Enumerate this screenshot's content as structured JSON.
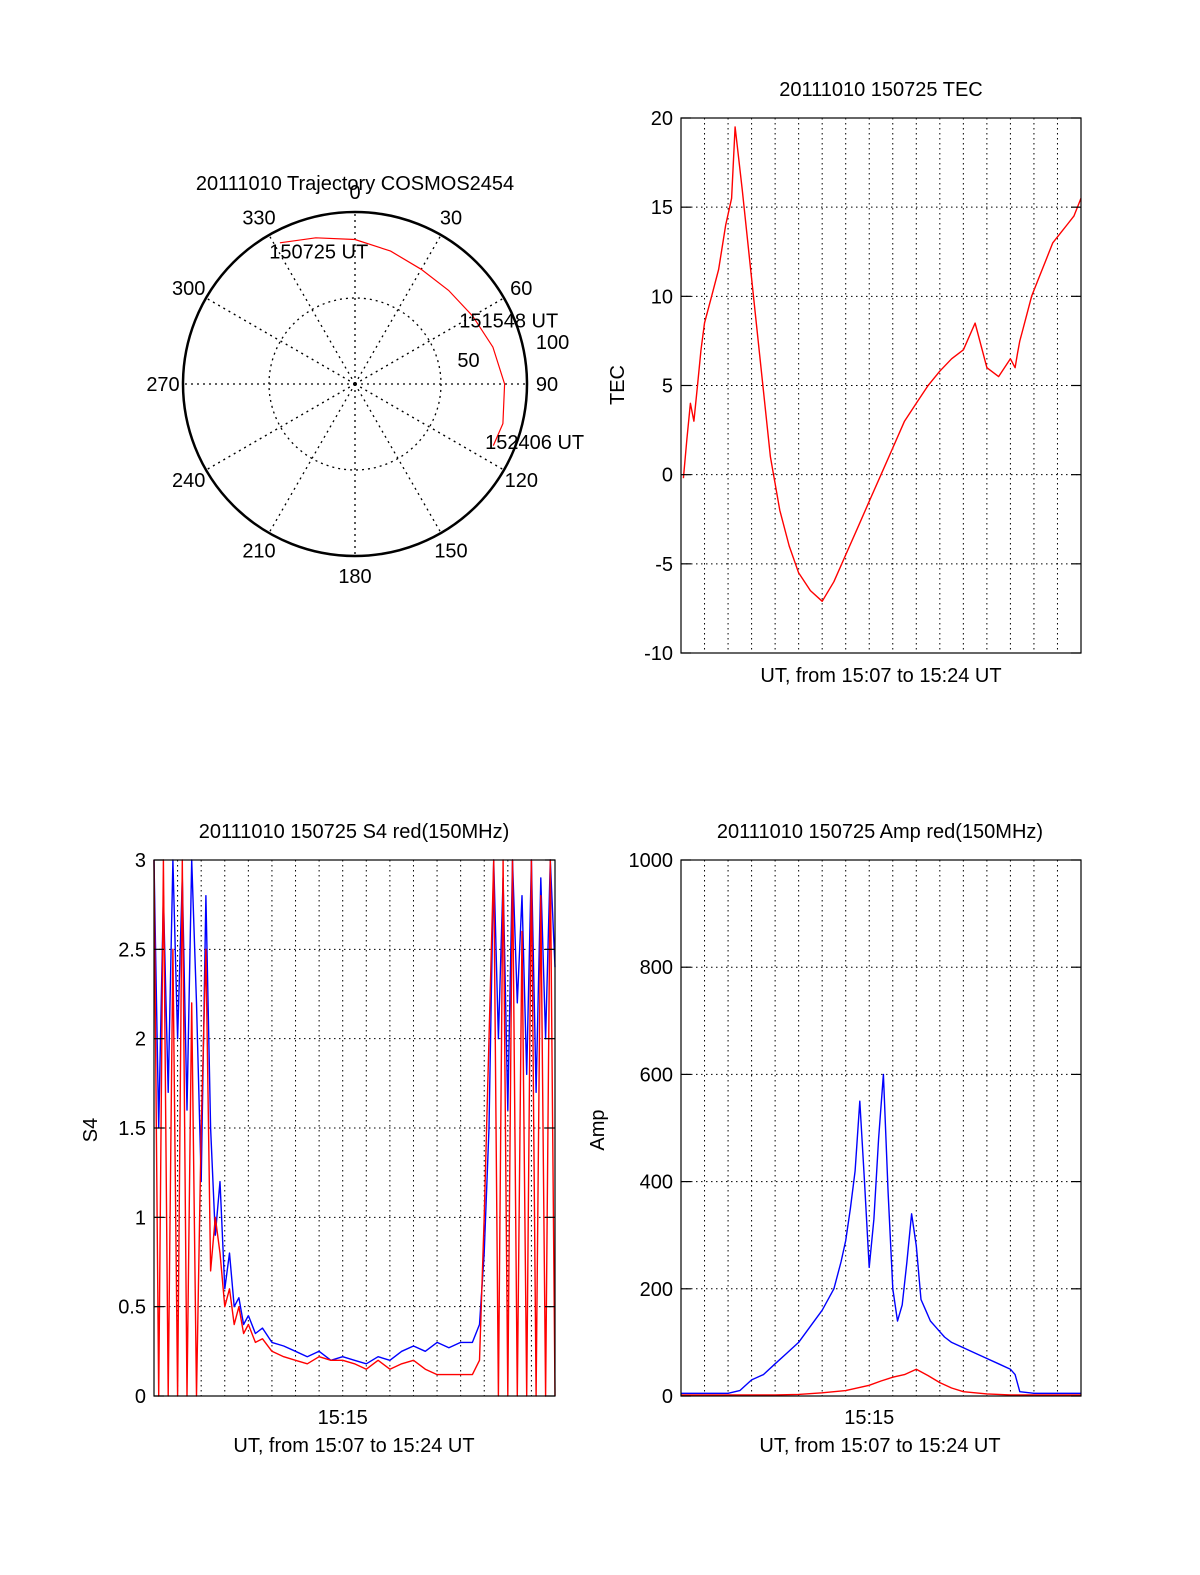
{
  "colors": {
    "red": "#ff0000",
    "blue": "#0000ff",
    "axis": "#000000",
    "grid": "#000000"
  },
  "chart_data": [
    {
      "type": "polar",
      "title": "20111010 Trajectory COSMOS2454",
      "angle_labels": [
        "0",
        "30",
        "60",
        "90",
        "120",
        "150",
        "180",
        "210",
        "240",
        "270",
        "300",
        "330"
      ],
      "angle_values": [
        0,
        30,
        60,
        90,
        120,
        150,
        180,
        210,
        240,
        270,
        300,
        330
      ],
      "radius_labels": [
        "50",
        "100"
      ],
      "radius_values": [
        50,
        100
      ],
      "rlim": [
        0,
        100
      ],
      "grid": true,
      "series": [
        {
          "color": "red",
          "points": [
            {
              "az": 332,
              "r": 93
            },
            {
              "az": 345,
              "r": 88
            },
            {
              "az": 0,
              "r": 84
            },
            {
              "az": 15,
              "r": 80
            },
            {
              "az": 30,
              "r": 77
            },
            {
              "az": 45,
              "r": 77
            },
            {
              "az": 60,
              "r": 79
            },
            {
              "az": 75,
              "r": 83
            },
            {
              "az": 90,
              "r": 87
            },
            {
              "az": 105,
              "r": 89
            },
            {
              "az": 114,
              "r": 88
            }
          ]
        }
      ],
      "annotations": [
        {
          "text": "150725 UT",
          "az": 329,
          "r": 90
        },
        {
          "text": "151548 UT",
          "az": 60,
          "r": 74
        },
        {
          "text": "152406 UT",
          "az": 113,
          "r": 86
        }
      ]
    },
    {
      "type": "line",
      "title": "20111010 150725 TEC",
      "xlabel": "UT, from 15:07 to 15:24 UT",
      "ylabel": "TEC",
      "xlim": [
        0,
        17
      ],
      "ylim": [
        -10,
        20
      ],
      "yticks": [
        -10,
        -5,
        0,
        5,
        10,
        15,
        20
      ],
      "grid": true,
      "series": [
        {
          "color": "red",
          "x": [
            0.1,
            0.25,
            0.4,
            0.55,
            0.7,
            0.85,
            1.0,
            1.3,
            1.6,
            1.9,
            2.15,
            2.3,
            2.6,
            3.0,
            3.4,
            3.8,
            4.2,
            4.6,
            5.0,
            5.5,
            6.0,
            6.5,
            7.0,
            7.5,
            8.0,
            8.5,
            9.0,
            9.5,
            10.0,
            10.5,
            11.0,
            11.5,
            12.0,
            12.5,
            13.0,
            13.5,
            14.0,
            14.2,
            14.3,
            14.4,
            14.5,
            14.7,
            14.9,
            15.2,
            15.5,
            15.8,
            16.1,
            16.4,
            16.7,
            17.0
          ],
          "y": [
            -0.2,
            2.0,
            4.0,
            3.0,
            5.0,
            7.0,
            8.5,
            10.0,
            11.5,
            14.0,
            15.5,
            19.5,
            16.0,
            11.0,
            6.0,
            1.0,
            -2.0,
            -4.0,
            -5.5,
            -6.5,
            -7.1,
            -6.0,
            -4.5,
            -3.0,
            -1.5,
            0.0,
            1.5,
            3.0,
            4.0,
            5.0,
            5.8,
            6.5,
            7.0,
            8.5,
            6.0,
            5.5,
            6.5,
            6.0,
            6.8,
            7.5,
            8.0,
            9.0,
            10.0,
            11.0,
            12.0,
            13.0,
            13.5,
            14.0,
            14.5,
            15.5
          ]
        }
      ]
    },
    {
      "type": "line",
      "title": "20111010 150725 S4 red(150MHz)",
      "xlabel": "UT, from 15:07 to 15:24 UT",
      "ylabel": "S4",
      "xlim": [
        0,
        17
      ],
      "ylim": [
        0,
        3
      ],
      "yticks": [
        0,
        0.5,
        1,
        1.5,
        2,
        2.5,
        3
      ],
      "xtick_label": "15:15",
      "xtick_value": 8,
      "grid": true,
      "series": [
        {
          "color": "blue",
          "x": [
            0.0,
            0.2,
            0.4,
            0.6,
            0.8,
            1.0,
            1.2,
            1.4,
            1.6,
            1.8,
            2.0,
            2.2,
            2.4,
            2.6,
            2.8,
            3.0,
            3.2,
            3.4,
            3.6,
            3.8,
            4.0,
            4.3,
            4.6,
            5.0,
            5.5,
            6.0,
            6.5,
            7.0,
            7.5,
            8.0,
            8.5,
            9.0,
            9.5,
            10.0,
            10.5,
            11.0,
            11.5,
            12.0,
            12.5,
            13.0,
            13.5,
            13.8,
            14.0,
            14.2,
            14.4,
            14.6,
            14.8,
            15.0,
            15.2,
            15.4,
            15.6,
            15.8,
            16.0,
            16.2,
            16.4,
            16.6,
            16.8,
            17.0
          ],
          "y": [
            3.0,
            1.5,
            2.8,
            1.7,
            3.0,
            2.0,
            2.9,
            1.6,
            3.0,
            2.2,
            1.2,
            2.8,
            1.5,
            0.9,
            1.2,
            0.6,
            0.8,
            0.5,
            0.55,
            0.4,
            0.45,
            0.35,
            0.38,
            0.3,
            0.28,
            0.25,
            0.22,
            0.25,
            0.2,
            0.22,
            0.2,
            0.18,
            0.22,
            0.2,
            0.25,
            0.28,
            0.25,
            0.3,
            0.27,
            0.3,
            0.3,
            0.4,
            0.8,
            1.5,
            3.0,
            2.0,
            2.9,
            1.6,
            3.0,
            2.2,
            2.8,
            1.8,
            3.0,
            1.7,
            2.9,
            2.0,
            3.0,
            2.4
          ]
        },
        {
          "color": "red",
          "x": [
            0.0,
            0.2,
            0.4,
            0.6,
            0.8,
            1.0,
            1.2,
            1.4,
            1.6,
            1.8,
            2.0,
            2.2,
            2.4,
            2.6,
            2.8,
            3.0,
            3.2,
            3.4,
            3.6,
            3.8,
            4.0,
            4.3,
            4.6,
            5.0,
            5.5,
            6.0,
            6.5,
            7.0,
            7.5,
            8.0,
            8.5,
            9.0,
            9.5,
            10.0,
            10.5,
            11.0,
            11.5,
            12.0,
            12.5,
            13.0,
            13.5,
            13.8,
            14.0,
            14.2,
            14.4,
            14.6,
            14.8,
            15.0,
            15.2,
            15.4,
            15.6,
            15.8,
            16.0,
            16.2,
            16.4,
            16.6,
            16.8,
            17.0
          ],
          "y": [
            3.0,
            0.0,
            3.0,
            0.0,
            2.5,
            0.0,
            3.0,
            0.0,
            2.2,
            0.0,
            1.5,
            2.5,
            0.7,
            1.0,
            0.8,
            0.5,
            0.6,
            0.4,
            0.5,
            0.35,
            0.4,
            0.3,
            0.32,
            0.25,
            0.22,
            0.2,
            0.18,
            0.22,
            0.2,
            0.2,
            0.18,
            0.15,
            0.2,
            0.15,
            0.18,
            0.2,
            0.15,
            0.12,
            0.12,
            0.12,
            0.12,
            0.2,
            1.0,
            2.0,
            3.0,
            0.0,
            3.0,
            0.0,
            3.0,
            0.0,
            2.6,
            0.0,
            3.0,
            0.0,
            2.8,
            0.0,
            3.0,
            0.0
          ]
        }
      ]
    },
    {
      "type": "line",
      "title": "20111010 150725 Amp red(150MHz)",
      "xlabel": "UT, from 15:07 to 15:24 UT",
      "ylabel": "Amp",
      "xlim": [
        0,
        17
      ],
      "ylim": [
        0,
        1000
      ],
      "yticks": [
        0,
        200,
        400,
        600,
        800,
        1000
      ],
      "xtick_label": "15:15",
      "xtick_value": 8,
      "grid": true,
      "series": [
        {
          "color": "blue",
          "x": [
            0.0,
            1.0,
            2.0,
            2.5,
            3.0,
            3.5,
            4.0,
            4.5,
            5.0,
            5.5,
            6.0,
            6.5,
            6.8,
            7.0,
            7.2,
            7.4,
            7.6,
            7.8,
            8.0,
            8.2,
            8.4,
            8.6,
            8.8,
            9.0,
            9.2,
            9.4,
            9.6,
            9.8,
            10.0,
            10.2,
            10.4,
            10.6,
            10.8,
            11.0,
            11.2,
            11.5,
            12.0,
            12.5,
            13.0,
            13.5,
            14.0,
            14.2,
            14.4,
            15.0,
            16.0,
            17.0
          ],
          "y": [
            5,
            5,
            5,
            10,
            30,
            40,
            60,
            80,
            100,
            130,
            160,
            200,
            250,
            290,
            350,
            420,
            550,
            400,
            240,
            330,
            480,
            600,
            380,
            200,
            140,
            170,
            250,
            340,
            280,
            180,
            160,
            140,
            130,
            120,
            110,
            100,
            90,
            80,
            70,
            60,
            50,
            40,
            8,
            5,
            5,
            5
          ]
        },
        {
          "color": "red",
          "x": [
            0.0,
            4.0,
            5.0,
            6.0,
            7.0,
            8.0,
            8.5,
            9.0,
            9.5,
            10.0,
            10.5,
            11.0,
            11.5,
            12.0,
            13.0,
            14.0,
            15.0,
            17.0
          ],
          "y": [
            2,
            2,
            3,
            6,
            10,
            20,
            28,
            35,
            40,
            50,
            38,
            25,
            15,
            8,
            4,
            2,
            2,
            2
          ]
        }
      ]
    }
  ]
}
